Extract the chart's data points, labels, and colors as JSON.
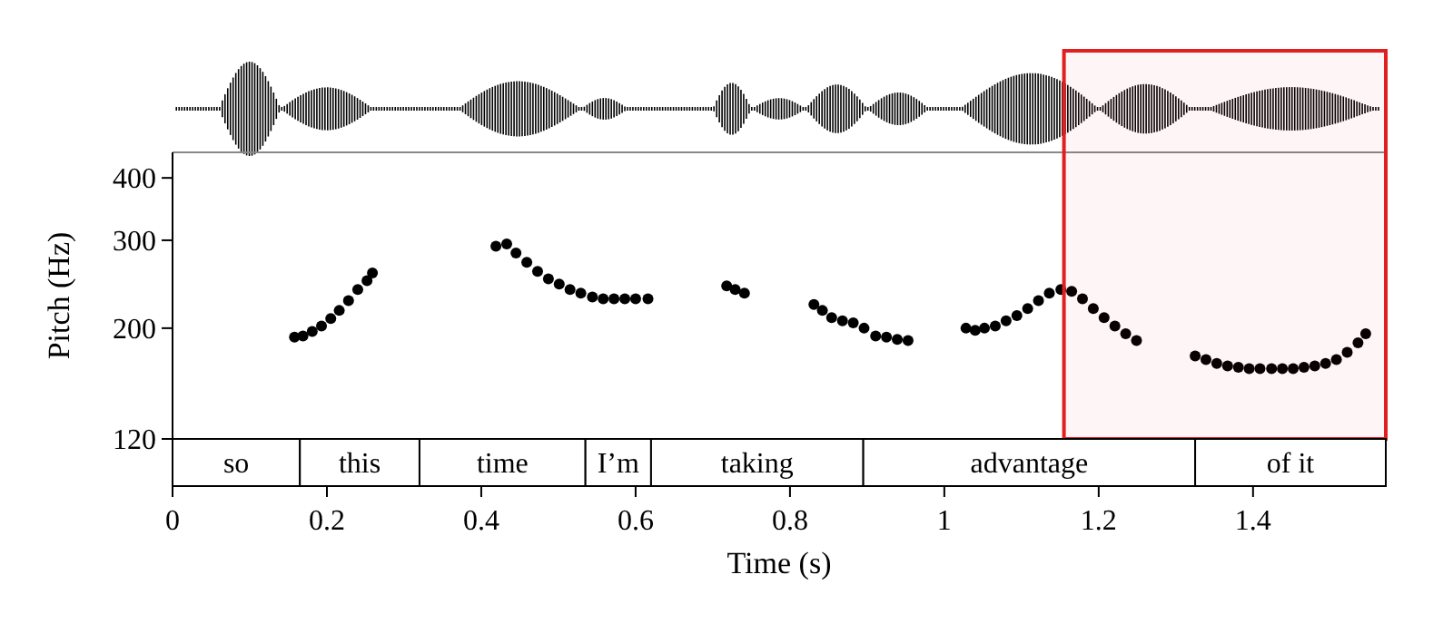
{
  "chart_data": [
    {
      "type": "scatter",
      "ylabel": "Pitch (Hz)",
      "log": "y",
      "marker": "circle",
      "xlim": [
        0,
        1.572
      ],
      "ylim": [
        120,
        450
      ],
      "tick_labels": "y",
      "yticks": [
        120,
        200,
        300,
        400
      ],
      "series": [
        {
          "color": "#000000",
          "x": [
            0.158,
            0.169,
            0.181,
            0.193,
            0.205,
            0.216,
            0.228,
            0.24,
            0.252,
            0.259,
            0.419,
            0.433,
            0.445,
            0.459,
            0.473,
            0.487,
            0.501,
            0.515,
            0.529,
            0.544,
            0.558,
            0.572,
            0.586,
            0.6,
            0.616,
            0.718,
            0.729,
            0.741,
            0.831,
            0.842,
            0.854,
            0.868,
            0.882,
            0.896,
            0.911,
            0.925,
            0.939,
            0.953,
            1.028,
            1.04,
            1.052,
            1.066,
            1.08,
            1.094,
            1.108,
            1.122,
            1.136,
            1.151,
            1.165,
            1.179,
            1.193,
            1.207,
            1.221,
            1.235,
            1.249,
            1.325,
            1.339,
            1.353,
            1.367,
            1.381,
            1.395,
            1.409,
            1.424,
            1.438,
            1.452,
            1.466,
            1.48,
            1.494,
            1.508,
            1.522,
            1.536,
            1.546
          ],
          "values": [
            192,
            193,
            197,
            202,
            209,
            217,
            227,
            239,
            249,
            258,
            292,
            295,
            283,
            271,
            260,
            251,
            245,
            239,
            235,
            231,
            229,
            229,
            229,
            229,
            229,
            243,
            239,
            235,
            223,
            217,
            210,
            207,
            205,
            200,
            193,
            192,
            190,
            189,
            200,
            198,
            200,
            202,
            207,
            212,
            219,
            227,
            235,
            239,
            237,
            229,
            219,
            210,
            202,
            195,
            189,
            176,
            173,
            170,
            168,
            167,
            166,
            166,
            166,
            166,
            166,
            167,
            168,
            170,
            173,
            179,
            187,
            195
          ]
        }
      ],
      "bands": [
        {
          "axis": "x",
          "from": 1.155,
          "to": 1.572,
          "color": "#e02020"
        }
      ]
    },
    {
      "type": "bar",
      "orientation": "horizontal",
      "stacked": true,
      "xlabel": "Time (s)",
      "xlim": [
        0,
        1.572
      ],
      "xticks": [
        0,
        0.2,
        0.4,
        0.6,
        0.8,
        1,
        1.2,
        1.4
      ],
      "categories": [
        null
      ],
      "series": [
        {
          "name": "so",
          "color": "#ffffff",
          "values": [
            0.165
          ]
        },
        {
          "name": "this",
          "color": "#ffffff",
          "values": [
            0.155
          ]
        },
        {
          "name": "time",
          "color": "#ffffff",
          "values": [
            0.215
          ]
        },
        {
          "name": "I’m",
          "color": "#ffffff",
          "values": [
            0.085
          ]
        },
        {
          "name": "taking",
          "color": "#ffffff",
          "values": [
            0.275
          ]
        },
        {
          "name": "advantage",
          "color": "#ffffff",
          "values": [
            0.43
          ]
        },
        {
          "name": "of it",
          "color": "#ffffff",
          "values": [
            0.247
          ]
        }
      ]
    }
  ]
}
